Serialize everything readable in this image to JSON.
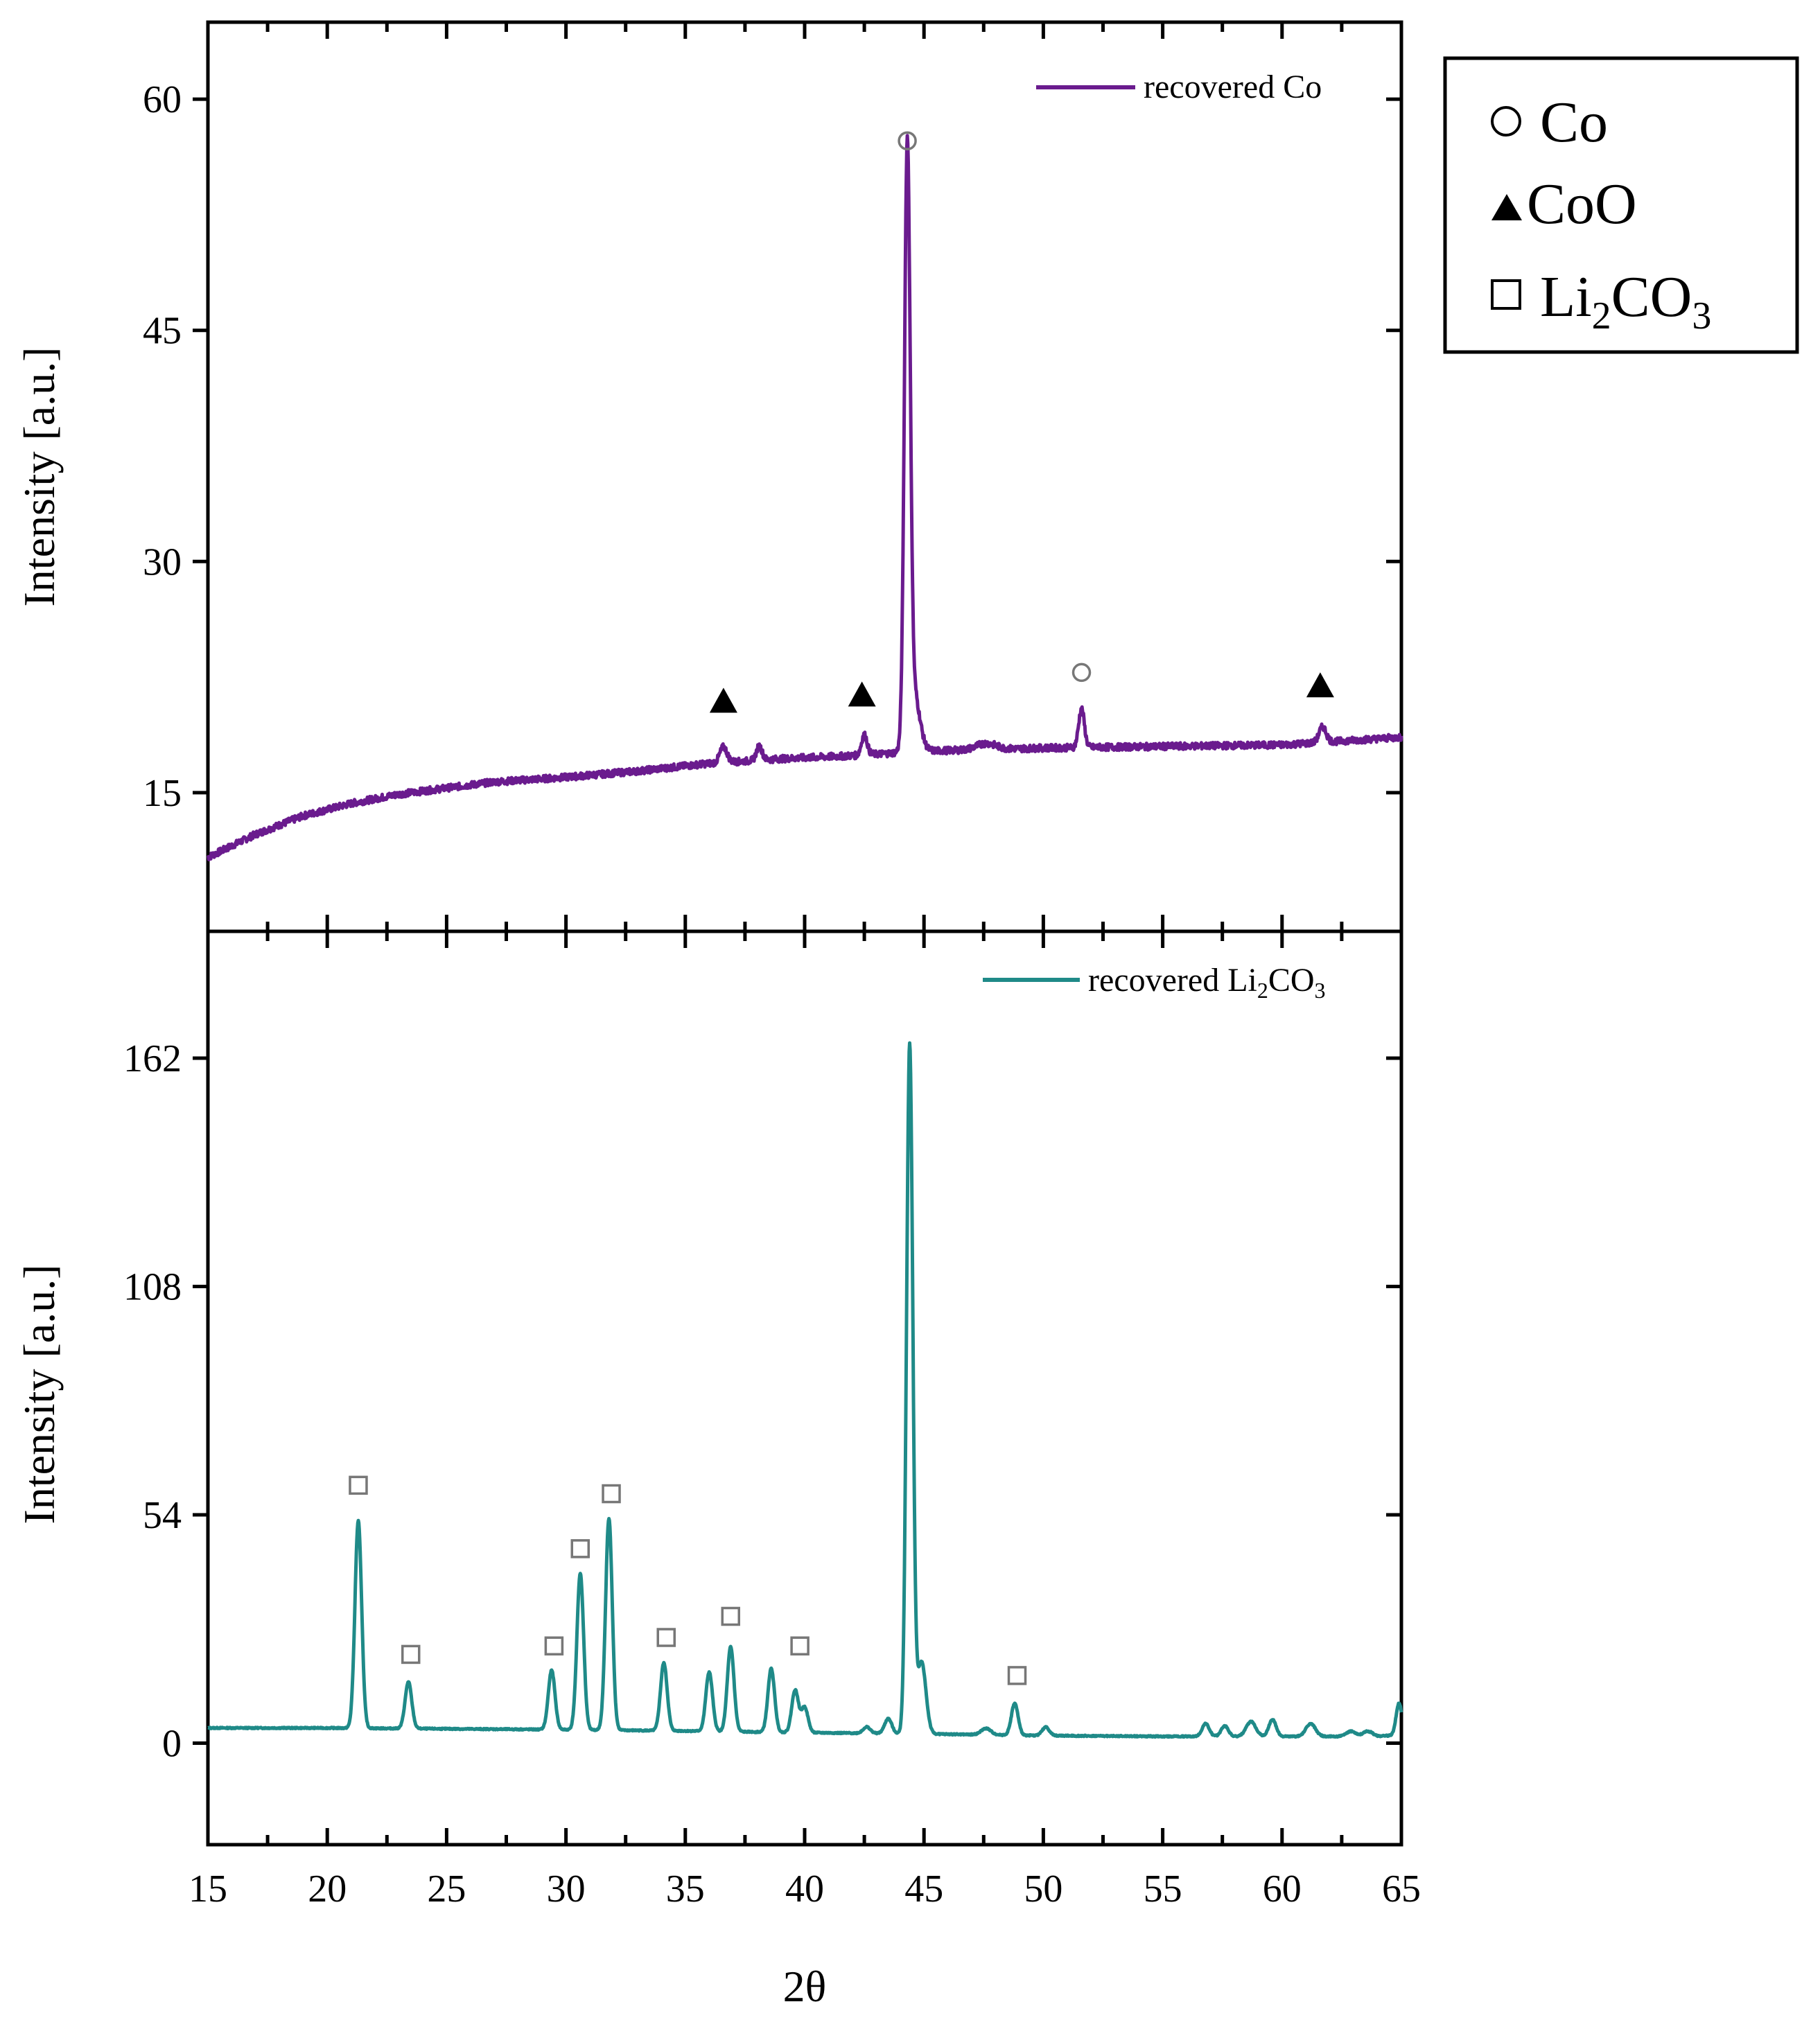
{
  "chart_data": [
    {
      "type": "line",
      "panel": "top",
      "ylabel": "Intensity [a.u.]",
      "xlim": [
        15,
        65
      ],
      "ylim": [
        6,
        65
      ],
      "yticks": [
        "15",
        "30",
        "45",
        "60"
      ],
      "legend_text": "recovered Co",
      "legend_position": "top-right",
      "color": "#6a1b8e",
      "series": {
        "name": "recovered Co",
        "baseline": [
          [
            15,
            10.8
          ],
          [
            17,
            12.3
          ],
          [
            19,
            13.5
          ],
          [
            21,
            14.3
          ],
          [
            23,
            14.9
          ],
          [
            25,
            15.3
          ],
          [
            27,
            15.7
          ],
          [
            30,
            16.0
          ],
          [
            33,
            16.4
          ],
          [
            36,
            16.9
          ],
          [
            39,
            17.2
          ],
          [
            42,
            17.4
          ],
          [
            45,
            17.7
          ],
          [
            50,
            17.9
          ],
          [
            55,
            18.0
          ],
          [
            60,
            18.1
          ],
          [
            65,
            18.6
          ]
        ],
        "peaks": [
          {
            "x": 36.6,
            "h": 1.0,
            "w": 0.15
          },
          {
            "x": 38.1,
            "h": 0.9,
            "w": 0.12
          },
          {
            "x": 42.5,
            "h": 1.3,
            "w": 0.12
          },
          {
            "x": 44.3,
            "h": 37.5,
            "w": 0.12
          },
          {
            "x": 44.55,
            "h": 4.0,
            "w": 0.25
          },
          {
            "x": 47.6,
            "h": 0.4,
            "w": 0.4
          },
          {
            "x": 51.6,
            "h": 2.5,
            "w": 0.12
          },
          {
            "x": 61.7,
            "h": 1.0,
            "w": 0.15
          }
        ],
        "noise": 0.22
      },
      "markers": [
        {
          "symbol": "circle",
          "x": 44.3,
          "y": 57.3
        },
        {
          "symbol": "circle",
          "x": 51.6,
          "y": 22.8
        },
        {
          "symbol": "triangle",
          "x": 36.6,
          "y": 21.0
        },
        {
          "symbol": "triangle",
          "x": 42.4,
          "y": 21.4
        },
        {
          "symbol": "triangle",
          "x": 61.6,
          "y": 22.0
        }
      ]
    },
    {
      "type": "line",
      "panel": "bottom",
      "ylabel": "Intensity [a.u.]",
      "xlabel": "2θ",
      "xlim": [
        15,
        65
      ],
      "ylim": [
        -24,
        192
      ],
      "yticks": [
        "0",
        "54",
        "108",
        "162"
      ],
      "xticks": [
        "15",
        "20",
        "25",
        "30",
        "35",
        "40",
        "45",
        "50",
        "55",
        "60",
        "65"
      ],
      "legend_text": "recovered Li",
      "legend_sub1": "2",
      "legend_mid": "CO",
      "legend_sub2": "3",
      "legend_position": "top-right",
      "color": "#1f8a88",
      "series": {
        "name": "recovered Li2CO3",
        "baseline": [
          [
            15,
            3.6
          ],
          [
            20,
            3.6
          ],
          [
            25,
            3.4
          ],
          [
            30,
            3.2
          ],
          [
            35,
            2.9
          ],
          [
            40,
            2.5
          ],
          [
            45,
            2.2
          ],
          [
            50,
            1.8
          ],
          [
            55,
            1.6
          ],
          [
            60,
            1.6
          ],
          [
            64,
            1.6
          ],
          [
            65,
            2.0
          ]
        ],
        "peaks": [
          {
            "x": 21.3,
            "h": 49,
            "w": 0.14
          },
          {
            "x": 23.4,
            "h": 11,
            "w": 0.14
          },
          {
            "x": 29.4,
            "h": 14,
            "w": 0.14
          },
          {
            "x": 30.6,
            "h": 37,
            "w": 0.14
          },
          {
            "x": 31.8,
            "h": 50,
            "w": 0.14
          },
          {
            "x": 34.1,
            "h": 16,
            "w": 0.14
          },
          {
            "x": 36.0,
            "h": 14,
            "w": 0.14
          },
          {
            "x": 36.9,
            "h": 20,
            "w": 0.14
          },
          {
            "x": 38.6,
            "h": 15,
            "w": 0.14
          },
          {
            "x": 39.6,
            "h": 10,
            "w": 0.14
          },
          {
            "x": 40.0,
            "h": 6,
            "w": 0.14
          },
          {
            "x": 42.6,
            "h": 1.5,
            "w": 0.15
          },
          {
            "x": 43.5,
            "h": 3.5,
            "w": 0.15
          },
          {
            "x": 44.4,
            "h": 163,
            "w": 0.13
          },
          {
            "x": 44.9,
            "h": 17,
            "w": 0.18
          },
          {
            "x": 47.6,
            "h": 1.5,
            "w": 0.2
          },
          {
            "x": 48.8,
            "h": 7.5,
            "w": 0.14
          },
          {
            "x": 50.1,
            "h": 2.0,
            "w": 0.15
          },
          {
            "x": 56.8,
            "h": 3.0,
            "w": 0.15
          },
          {
            "x": 57.6,
            "h": 2.5,
            "w": 0.15
          },
          {
            "x": 58.7,
            "h": 3.5,
            "w": 0.2
          },
          {
            "x": 59.6,
            "h": 4.0,
            "w": 0.15
          },
          {
            "x": 61.2,
            "h": 3.0,
            "w": 0.2
          },
          {
            "x": 62.9,
            "h": 1.2,
            "w": 0.2
          },
          {
            "x": 63.6,
            "h": 1.2,
            "w": 0.2
          },
          {
            "x": 64.9,
            "h": 7.5,
            "w": 0.12
          }
        ],
        "noise": 0.15
      },
      "markers": [
        {
          "symbol": "square",
          "x": 21.3,
          "y": 61
        },
        {
          "symbol": "square",
          "x": 23.5,
          "y": 21
        },
        {
          "symbol": "square",
          "x": 29.5,
          "y": 23
        },
        {
          "symbol": "square",
          "x": 30.6,
          "y": 46
        },
        {
          "symbol": "square",
          "x": 31.9,
          "y": 59
        },
        {
          "symbol": "square",
          "x": 34.2,
          "y": 25
        },
        {
          "symbol": "square",
          "x": 36.9,
          "y": 30
        },
        {
          "symbol": "square",
          "x": 39.8,
          "y": 23
        },
        {
          "symbol": "square",
          "x": 48.9,
          "y": 16
        }
      ]
    }
  ],
  "legend": {
    "items": [
      {
        "symbol": "circle",
        "label": "Co"
      },
      {
        "symbol": "triangle",
        "label": "CoO"
      },
      {
        "symbol": "square",
        "label_main": "Li",
        "label_sub1": "2",
        "label_mid": "CO",
        "label_sub2": "3"
      }
    ]
  },
  "colors": {
    "top_series": "#6a1b8e",
    "bottom_series": "#1f8a88",
    "axes": "#000000",
    "marker_open": "#888888"
  }
}
